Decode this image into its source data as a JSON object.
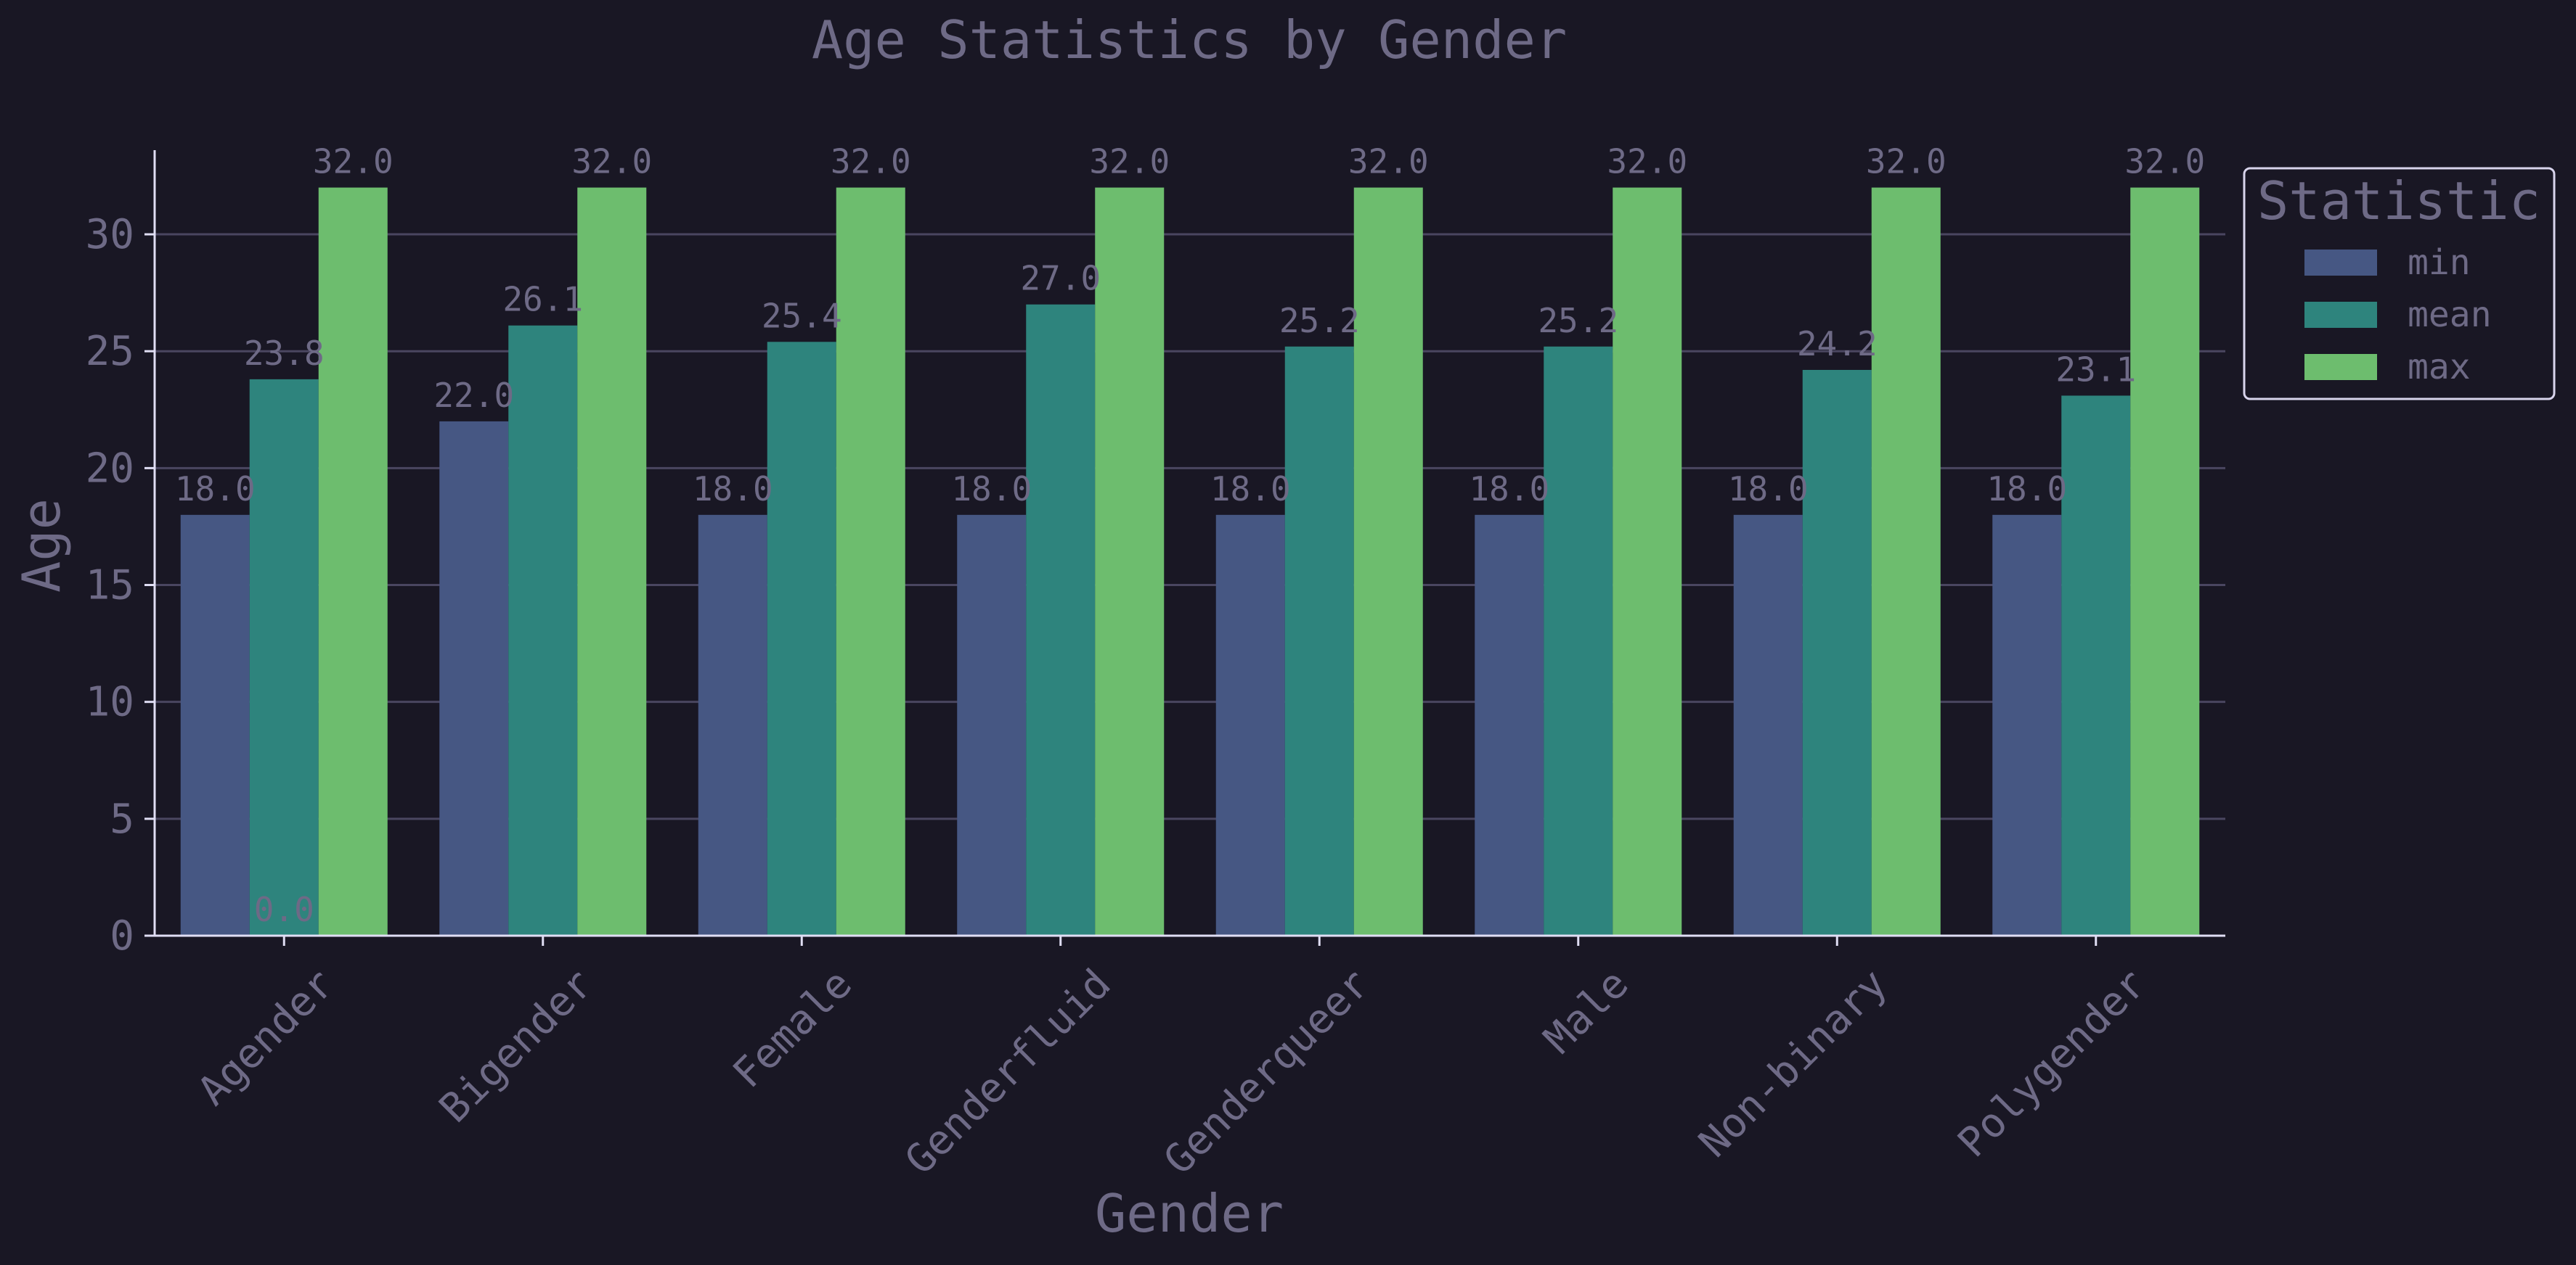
{
  "chart_data": {
    "type": "bar",
    "title": "Age Statistics by Gender",
    "xlabel": "Gender",
    "ylabel": "Age",
    "ylim": [
      0,
      33.6
    ],
    "yticks": [
      0,
      5,
      10,
      15,
      20,
      25,
      30
    ],
    "categories": [
      "Agender",
      "Bigender",
      "Female",
      "Genderfluid",
      "Genderqueer",
      "Male",
      "Non-binary",
      "Polygender"
    ],
    "series": [
      {
        "name": "min",
        "color": "#465783",
        "values": [
          18.0,
          22.0,
          18.0,
          18.0,
          18.0,
          18.0,
          18.0,
          18.0
        ]
      },
      {
        "name": "mean",
        "color": "#2e847d",
        "values": [
          23.8,
          26.1,
          25.4,
          27.0,
          25.2,
          25.2,
          24.2,
          23.1
        ]
      },
      {
        "name": "max",
        "color": "#6dbd6e",
        "values": [
          32.0,
          32.0,
          32.0,
          32.0,
          32.0,
          32.0,
          32.0,
          32.0
        ]
      }
    ],
    "stray_label": "0.0",
    "legend": {
      "title": "Statistic",
      "placement": "outside-right-top"
    },
    "grid": "y",
    "colors": {
      "background": "#191724",
      "text": "#6e6a86",
      "grid": "#4a4660",
      "axis": "#e0def4"
    }
  }
}
